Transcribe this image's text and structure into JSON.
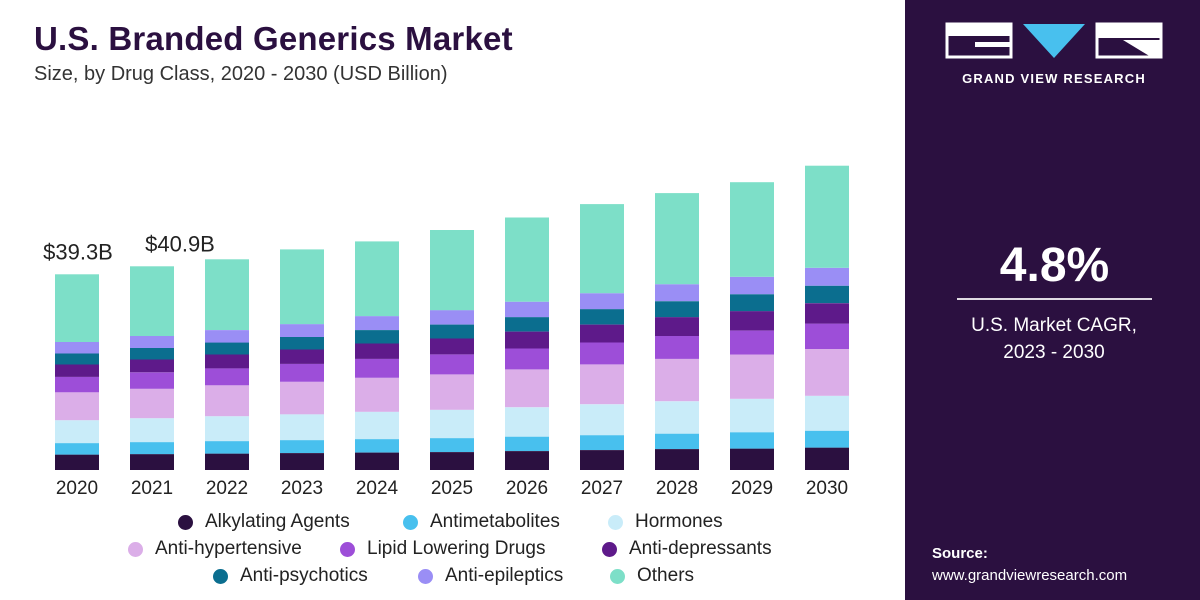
{
  "header": {
    "title": "U.S. Branded Generics Market",
    "subtitle": "Size, by Drug Class, 2020 - 2030 (USD Billion)"
  },
  "sidebar": {
    "brand": "GRAND VIEW RESEARCH",
    "cagr_value": "4.8%",
    "cagr_label_line1": "U.S. Market CAGR,",
    "cagr_label_line2": "2023 - 2030",
    "source_label": "Source:",
    "source_url": "www.grandviewresearch.com",
    "background": "#2b1040"
  },
  "chart_data": {
    "type": "bar",
    "stacked": true,
    "categories": [
      "2020",
      "2021",
      "2022",
      "2023",
      "2024",
      "2025",
      "2026",
      "2027",
      "2028",
      "2029",
      "2030"
    ],
    "value_labels": [
      {
        "category": "2020",
        "text": "$39.3B"
      },
      {
        "category": "2021",
        "text": "$40.9B"
      }
    ],
    "series": [
      {
        "name": "Alkylating Agents",
        "color": "#2b1040",
        "values": [
          3.1,
          3.2,
          3.3,
          3.4,
          3.5,
          3.6,
          3.8,
          4.0,
          4.2,
          4.3,
          4.5
        ]
      },
      {
        "name": "Antimetabolites",
        "color": "#48c0ee",
        "values": [
          2.3,
          2.4,
          2.5,
          2.6,
          2.7,
          2.8,
          2.9,
          3.0,
          3.1,
          3.3,
          3.4
        ]
      },
      {
        "name": "Hormones",
        "color": "#c9ecf9",
        "values": [
          4.6,
          4.8,
          5.0,
          5.2,
          5.5,
          5.7,
          5.9,
          6.2,
          6.5,
          6.7,
          7.0
        ]
      },
      {
        "name": "Anti-hypertensive",
        "color": "#dbaee8",
        "values": [
          5.6,
          5.9,
          6.2,
          6.5,
          6.8,
          7.1,
          7.6,
          8.0,
          8.5,
          8.9,
          9.4
        ]
      },
      {
        "name": "Lipid Lowering Drugs",
        "color": "#9d4ed8",
        "values": [
          3.1,
          3.3,
          3.4,
          3.6,
          3.8,
          4.0,
          4.2,
          4.4,
          4.6,
          4.8,
          5.1
        ]
      },
      {
        "name": "Anti-depressants",
        "color": "#5e1a8a",
        "values": [
          2.5,
          2.6,
          2.8,
          2.9,
          3.1,
          3.2,
          3.4,
          3.6,
          3.8,
          3.9,
          4.1
        ]
      },
      {
        "name": "Anti-psychotics",
        "color": "#0b6e8f",
        "values": [
          2.2,
          2.3,
          2.4,
          2.5,
          2.7,
          2.8,
          2.9,
          3.1,
          3.2,
          3.4,
          3.5
        ]
      },
      {
        "name": "Anti-epileptics",
        "color": "#9a8ef5",
        "values": [
          2.3,
          2.4,
          2.5,
          2.6,
          2.8,
          2.9,
          3.1,
          3.2,
          3.4,
          3.5,
          3.6
        ]
      },
      {
        "name": "Others",
        "color": "#7ddfc8",
        "values": [
          13.6,
          14.0,
          14.2,
          15.0,
          15.0,
          16.1,
          16.9,
          17.9,
          18.3,
          19.0,
          20.5
        ]
      }
    ],
    "legend_position": "bottom",
    "grid": false
  }
}
